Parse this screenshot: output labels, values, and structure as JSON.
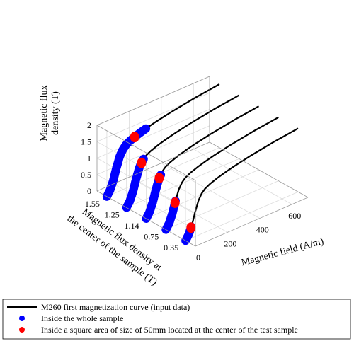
{
  "chart_data": {
    "type": "line",
    "projection": "3d",
    "title": "",
    "xlabel": "Magnetic field (A/m)",
    "ylabel": "Magnetic flux density at the center of the sample (T)",
    "ylabel_lines": [
      "Magnetic flux density at",
      "the center of the sample (T)"
    ],
    "zlabel": "Magnetic flux density (T)",
    "zlabel_lines": [
      "Magnetic flux",
      "density (T)"
    ],
    "xlim": [
      0,
      700
    ],
    "zlim": [
      0,
      2
    ],
    "x_ticks": [
      0,
      200,
      400,
      600
    ],
    "x_tick_labels": [
      "0",
      "200",
      "400",
      "600"
    ],
    "y_categories": [
      "1.55",
      "1.25",
      "1.14",
      "0.75",
      "0.35"
    ],
    "z_ticks": [
      0,
      0.5,
      1,
      1.5,
      2
    ],
    "z_tick_labels": [
      "0",
      "0.5",
      "1",
      "1.5",
      "2"
    ],
    "grid": true,
    "legend_position": "bottom",
    "colors": {
      "curve": "#000000",
      "whole": "#0000ff",
      "center": "#ff0000"
    },
    "series": [
      {
        "name": "M260 first magnetization curve (input data)",
        "kind": "line",
        "H": [
          0,
          20,
          40,
          60,
          80,
          100,
          120,
          150,
          200,
          250,
          300,
          350,
          400,
          450,
          500,
          550,
          600,
          650,
          700
        ],
        "B": [
          0,
          0.15,
          0.4,
          0.75,
          1.05,
          1.22,
          1.32,
          1.4,
          1.49,
          1.56,
          1.62,
          1.67,
          1.72,
          1.76,
          1.8,
          1.84,
          1.87,
          1.9,
          1.93
        ]
      },
      {
        "name": "Inside the whole sample",
        "kind": "scatter",
        "B_range": [
          [
            0,
            1.55
          ],
          [
            0,
            1.25
          ],
          [
            0,
            1.14
          ],
          [
            0,
            0.75
          ],
          [
            0,
            0.35
          ]
        ]
      },
      {
        "name": "Inside a square area of size of 50mm located at the center of the test sample",
        "kind": "scatter",
        "B_values": [
          1.55,
          1.25,
          1.14,
          0.75,
          0.35
        ]
      }
    ]
  }
}
